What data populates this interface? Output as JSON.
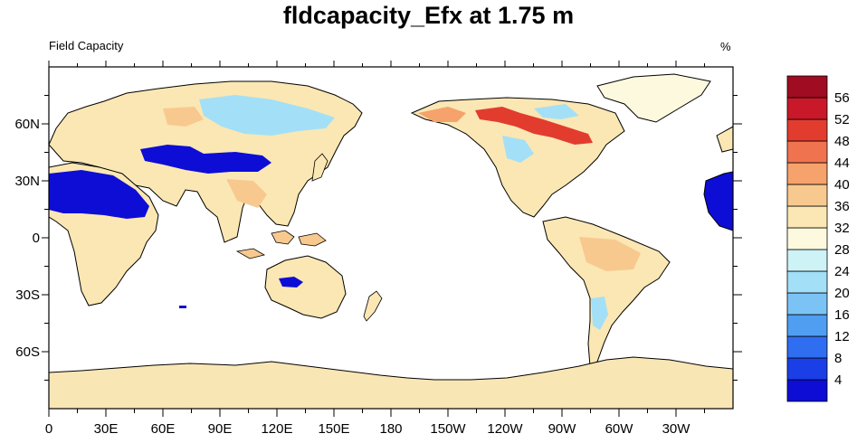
{
  "title": "fldcapacity_Efx at 1.75 m",
  "subtitle": "Field Capacity",
  "units": "%",
  "map": {
    "lon_ticks": [
      "0",
      "30E",
      "60E",
      "90E",
      "120E",
      "150E",
      "180",
      "150W",
      "120W",
      "90W",
      "60W",
      "30W"
    ],
    "lat_ticks": [
      "60N",
      "30N",
      "0",
      "30S",
      "60S"
    ]
  },
  "colorbar": {
    "labels": [
      "4",
      "8",
      "12",
      "16",
      "20",
      "24",
      "28",
      "32",
      "36",
      "40",
      "44",
      "48",
      "52",
      "56"
    ],
    "colors": [
      "#0d0dd6",
      "#1a3fe6",
      "#2f6ef0",
      "#4f9ef2",
      "#7cc3f5",
      "#a3e0f7",
      "#cdf3f7",
      "#fdf9df",
      "#fbe7b3",
      "#f8c98f",
      "#f5a26c",
      "#f0734f",
      "#e23c2f",
      "#c8182a",
      "#a00c22"
    ]
  },
  "colors": {
    "land_base": "#fbe7b3",
    "land_wet": "#f8c98f",
    "land_dry": "#a3e0f7",
    "very_low": "#0d0dd6",
    "high": "#e23c2f",
    "antarctica": "#f9e6b5"
  }
}
